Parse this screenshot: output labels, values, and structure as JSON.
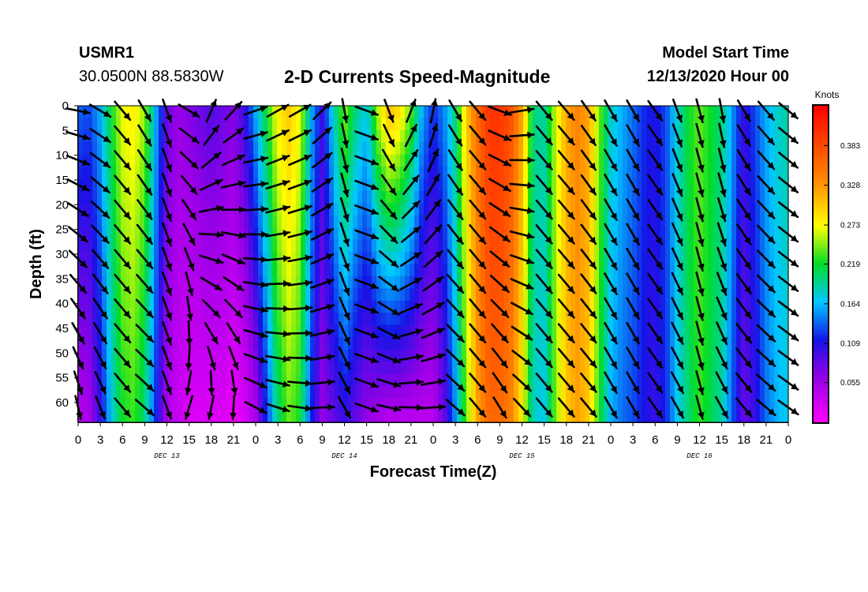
{
  "header": {
    "station_id": "USMR1",
    "coordinates": "30.0500N 88.5830W",
    "title": "2-D Currents Speed-Magnitude",
    "model_start_label": "Model Start Time",
    "model_start_value": "12/13/2020 Hour 00"
  },
  "chart_data": {
    "type": "heatmap",
    "title": "2-D Currents Speed-Magnitude",
    "xlabel": "Forecast Time(Z)",
    "ylabel": "Depth (ft)",
    "x_ticks": [
      "0",
      "3",
      "6",
      "9",
      "12",
      "15",
      "18",
      "21",
      "0",
      "3",
      "6",
      "9",
      "12",
      "15",
      "18",
      "21",
      "0",
      "3",
      "6",
      "9",
      "12",
      "15",
      "18",
      "21",
      "0",
      "3",
      "6",
      "9",
      "12",
      "15",
      "18",
      "21",
      "0"
    ],
    "x_range_hours": [
      0,
      96
    ],
    "date_labels": [
      {
        "label": "DEC 13",
        "hour": 12
      },
      {
        "label": "DEC 14",
        "hour": 36
      },
      {
        "label": "DEC 15",
        "hour": 60
      },
      {
        "label": "DEC 16",
        "hour": 84
      }
    ],
    "y_ticks": [
      0,
      5,
      10,
      15,
      20,
      25,
      30,
      35,
      40,
      45,
      50,
      55,
      60
    ],
    "y_range_ft": [
      0,
      64
    ],
    "y_inverted": true,
    "colorbar": {
      "units": "Knots",
      "range": [
        0,
        0.438
      ],
      "ticks": [
        0.383,
        0.328,
        0.273,
        0.219,
        0.164,
        0.109,
        0.055
      ],
      "tick_labels": [
        "0.383",
        "0.328",
        "0.273",
        "0.219",
        "0.164",
        "0.109",
        "0.055"
      ]
    },
    "speed_profile": {
      "hours": [
        0,
        1.5,
        3,
        4.5,
        6,
        7.5,
        9,
        10.5,
        12,
        13.5,
        15,
        16.5,
        18,
        19.5,
        21,
        22.5,
        24,
        25.5,
        27,
        28.5,
        30,
        31.5,
        33,
        34.5,
        36,
        37.5,
        39,
        40.5,
        42,
        43.5,
        45,
        46.5,
        48,
        49.5,
        51,
        52.5,
        54,
        55.5,
        57,
        58.5,
        60,
        61.5,
        63,
        64.5,
        66,
        67.5,
        69,
        70.5,
        72,
        73.5,
        75,
        76.5,
        78,
        79.5,
        81,
        82.5,
        84,
        85.5,
        87,
        88.5,
        90,
        91.5,
        93,
        94.5,
        96
      ],
      "top": [
        0.14,
        0.13,
        0.16,
        0.22,
        0.27,
        0.28,
        0.25,
        0.16,
        0.08,
        0.06,
        0.07,
        0.08,
        0.09,
        0.08,
        0.07,
        0.1,
        0.16,
        0.22,
        0.28,
        0.3,
        0.27,
        0.16,
        0.1,
        0.18,
        0.25,
        0.2,
        0.17,
        0.26,
        0.31,
        0.29,
        0.24,
        0.16,
        0.12,
        0.15,
        0.2,
        0.3,
        0.36,
        0.4,
        0.4,
        0.38,
        0.32,
        0.2,
        0.19,
        0.26,
        0.32,
        0.34,
        0.32,
        0.24,
        0.18,
        0.16,
        0.14,
        0.12,
        0.11,
        0.13,
        0.18,
        0.22,
        0.24,
        0.22,
        0.2,
        0.15,
        0.1,
        0.13,
        0.16,
        0.18,
        0.19
      ],
      "bottom": [
        0.04,
        0.05,
        0.1,
        0.17,
        0.22,
        0.23,
        0.2,
        0.12,
        0.05,
        0.03,
        0.02,
        0.02,
        0.02,
        0.02,
        0.01,
        0.02,
        0.05,
        0.12,
        0.2,
        0.24,
        0.22,
        0.12,
        0.06,
        0.08,
        0.1,
        0.08,
        0.06,
        0.05,
        0.04,
        0.04,
        0.04,
        0.04,
        0.04,
        0.08,
        0.15,
        0.24,
        0.32,
        0.36,
        0.36,
        0.34,
        0.28,
        0.18,
        0.17,
        0.24,
        0.3,
        0.32,
        0.3,
        0.22,
        0.16,
        0.14,
        0.13,
        0.11,
        0.1,
        0.12,
        0.17,
        0.2,
        0.23,
        0.21,
        0.19,
        0.13,
        0.08,
        0.1,
        0.14,
        0.16,
        0.17
      ]
    },
    "vector_directions": {
      "hours": [
        0,
        3,
        6,
        9,
        12,
        15,
        18,
        21,
        24,
        27,
        30,
        33,
        36,
        39,
        42,
        45,
        48,
        51,
        54,
        57,
        60,
        63,
        66,
        69,
        72,
        75,
        78,
        81,
        84,
        87,
        90,
        93,
        96
      ],
      "top_deg": [
        100,
        120,
        140,
        150,
        160,
        120,
        20,
        40,
        70,
        60,
        60,
        45,
        170,
        110,
        160,
        20,
        10,
        150,
        140,
        110,
        80,
        140,
        140,
        145,
        150,
        150,
        145,
        160,
        165,
        170,
        150,
        140,
        130
      ],
      "bottom_deg": [
        170,
        160,
        140,
        130,
        160,
        200,
        200,
        190,
        120,
        110,
        100,
        90,
        150,
        110,
        100,
        95,
        90,
        130,
        140,
        150,
        140,
        140,
        140,
        140,
        150,
        150,
        145,
        150,
        165,
        150,
        140,
        130,
        125
      ]
    }
  }
}
